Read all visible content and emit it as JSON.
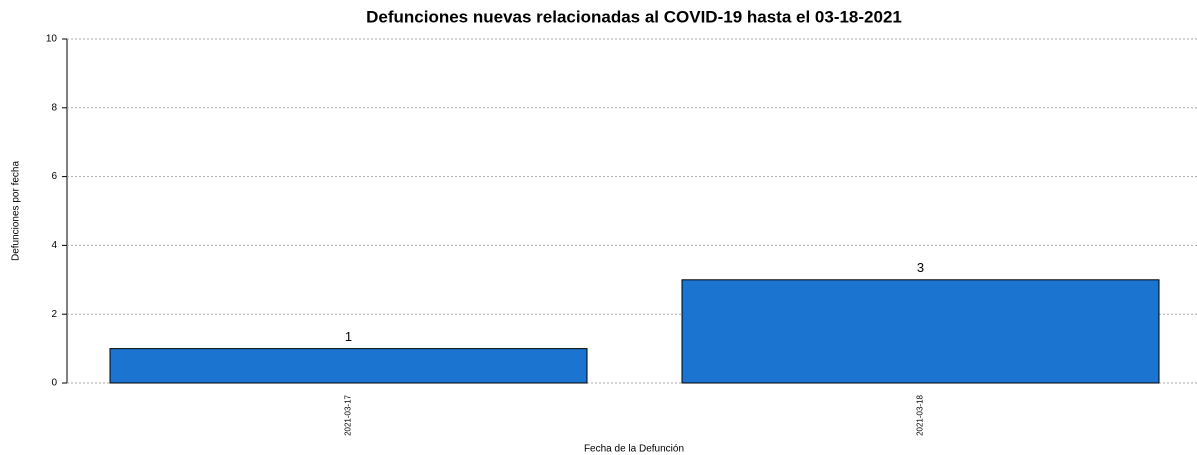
{
  "chart_data": {
    "type": "bar",
    "title": "Defunciones nuevas relacionadas al COVID-19 hasta el 03-18-2021",
    "x_label": "Fecha de la Defunción",
    "y_label": "Defunciones por fecha",
    "categories": [
      "2021-03-17",
      "2021-03-18"
    ],
    "values": [
      1,
      3
    ],
    "color": "#1b75d0",
    "ylim": [
      0,
      10
    ],
    "yticks": [
      0,
      2,
      4,
      6,
      8,
      10
    ],
    "grid": true
  }
}
